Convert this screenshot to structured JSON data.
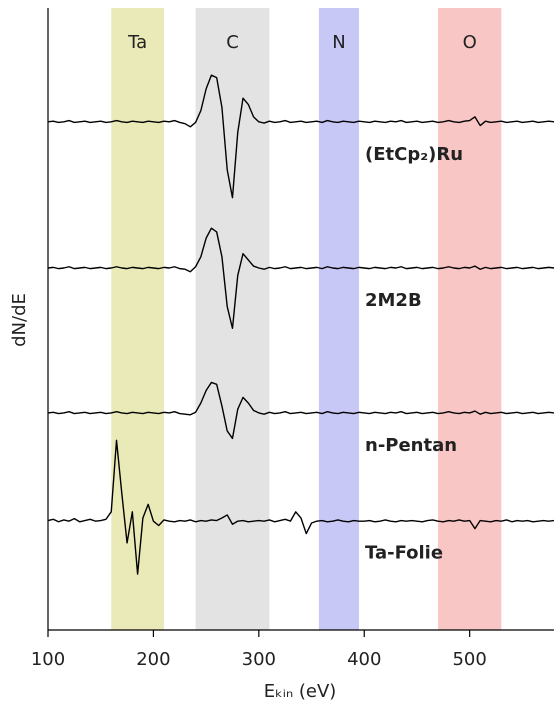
{
  "chart_data": {
    "type": "line",
    "xlabel": "Eₖᵢₙ (eV)",
    "ylabel": "dN/dE",
    "xlim": [
      100,
      580
    ],
    "xticks": [
      100,
      200,
      300,
      400,
      500
    ],
    "ylim": [
      0,
      100
    ],
    "regions": [
      {
        "label": "Ta",
        "range": [
          160,
          210
        ],
        "color": "#eaeab8"
      },
      {
        "label": "C",
        "range": [
          240,
          310
        ],
        "color": "#e3e3e3"
      },
      {
        "label": "N",
        "range": [
          357,
          395
        ],
        "color": "#c8c8f6"
      },
      {
        "label": "O",
        "range": [
          470,
          530
        ],
        "color": "#f9c6c6"
      }
    ],
    "x": [
      100,
      105,
      110,
      115,
      120,
      125,
      130,
      135,
      140,
      145,
      150,
      155,
      160,
      165,
      170,
      175,
      180,
      185,
      190,
      195,
      200,
      205,
      210,
      215,
      220,
      225,
      230,
      235,
      240,
      245,
      250,
      255,
      260,
      265,
      270,
      275,
      280,
      285,
      290,
      295,
      300,
      305,
      310,
      315,
      320,
      325,
      330,
      335,
      340,
      345,
      350,
      355,
      360,
      365,
      370,
      375,
      380,
      385,
      390,
      395,
      400,
      405,
      410,
      415,
      420,
      425,
      430,
      435,
      440,
      445,
      450,
      455,
      460,
      465,
      470,
      475,
      480,
      485,
      490,
      495,
      500,
      505,
      510,
      515,
      520,
      525,
      530,
      535,
      540,
      545,
      550,
      555,
      560,
      565,
      570,
      575,
      580
    ],
    "series": [
      {
        "name": "(EtCp₂)Ru",
        "color": "#000000",
        "values": [
          81.7,
          81.8,
          81.6,
          81.7,
          81.9,
          81.6,
          81.7,
          81.8,
          81.6,
          81.7,
          81.8,
          81.6,
          81.7,
          81.9,
          81.7,
          81.6,
          81.8,
          81.7,
          81.6,
          81.8,
          81.7,
          81.6,
          81.8,
          81.7,
          81.9,
          81.6,
          81.4,
          80.9,
          81.6,
          83.5,
          87,
          89.2,
          88.8,
          84,
          74,
          69.5,
          80,
          85.5,
          84.5,
          82.5,
          81.7,
          81.5,
          81.8,
          81.6,
          81.7,
          81.9,
          81.6,
          81.7,
          81.8,
          81.6,
          81.7,
          81.8,
          81.6,
          81.9,
          81.7,
          81.6,
          81.8,
          81.7,
          81.6,
          81.8,
          81.7,
          81.6,
          81.8,
          81.7,
          81.6,
          81.8,
          81.7,
          81.9,
          81.6,
          81.7,
          81.8,
          81.6,
          81.7,
          81.8,
          81.6,
          81.7,
          81.9,
          81.7,
          81.6,
          81.8,
          81.9,
          82.5,
          81.1,
          81.8,
          81.6,
          81.7,
          81.8,
          81.6,
          81.7,
          81.8,
          81.6,
          81.7,
          81.8,
          81.6,
          81.7,
          81.8,
          81.7
        ]
      },
      {
        "name": "2M2B",
        "color": "#000000",
        "values": [
          58.2,
          58.3,
          58.1,
          58.2,
          58.4,
          58.1,
          58.2,
          58.3,
          58.1,
          58.2,
          58.3,
          58.1,
          58.2,
          58.4,
          58.2,
          58.1,
          58.3,
          58.2,
          58.1,
          58.3,
          58.2,
          58.1,
          58.3,
          58.2,
          58.4,
          58.1,
          58.0,
          57.6,
          58.4,
          60,
          63,
          64.6,
          64,
          60,
          52,
          48.5,
          57,
          60.5,
          59.5,
          58.5,
          58.2,
          58.0,
          58.3,
          58.1,
          58.2,
          58.4,
          58.1,
          58.2,
          58.3,
          58.1,
          58.2,
          58.3,
          58.1,
          58.4,
          58.2,
          58.1,
          58.3,
          58.2,
          58.1,
          58.3,
          58.2,
          58.1,
          58.3,
          58.2,
          58.1,
          58.3,
          58.2,
          58.4,
          58.1,
          58.2,
          58.3,
          58.1,
          58.2,
          58.3,
          58.1,
          58.2,
          58.4,
          58.2,
          58.1,
          58.3,
          58.2,
          58.5,
          58.0,
          58.3,
          58.1,
          58.2,
          58.3,
          58.1,
          58.2,
          58.3,
          58.1,
          58.2,
          58.3,
          58.1,
          58.2,
          58.3,
          58.2
        ]
      },
      {
        "name": "n-Pentan",
        "color": "#000000",
        "values": [
          34.9,
          35.0,
          34.8,
          34.9,
          35.1,
          34.8,
          34.9,
          35.0,
          34.8,
          34.9,
          35.0,
          34.8,
          34.9,
          35.1,
          34.9,
          34.8,
          35.0,
          34.9,
          34.8,
          35.0,
          34.9,
          34.8,
          35.0,
          34.9,
          35.1,
          34.8,
          34.7,
          34.6,
          35,
          36.5,
          38.5,
          39.8,
          39.5,
          36,
          32,
          30.8,
          35.5,
          37.4,
          36.5,
          35.3,
          34.9,
          34.7,
          35.0,
          34.8,
          34.9,
          35.1,
          34.8,
          34.9,
          35.0,
          34.8,
          34.9,
          35.0,
          34.8,
          35.1,
          34.9,
          34.8,
          35.0,
          34.9,
          34.8,
          35.0,
          34.9,
          34.8,
          35.0,
          34.9,
          34.8,
          35.0,
          34.9,
          35.1,
          34.8,
          34.9,
          35.0,
          34.8,
          34.9,
          35.0,
          34.8,
          34.9,
          35.1,
          34.9,
          34.8,
          35.0,
          34.9,
          35.2,
          34.7,
          35.0,
          34.8,
          34.9,
          35.0,
          34.8,
          34.9,
          35.0,
          34.8,
          34.9,
          35.0,
          34.8,
          34.9,
          35.0,
          34.9
        ]
      },
      {
        "name": "Ta-Folie",
        "color": "#000000",
        "values": [
          17.6,
          17.8,
          17.4,
          17.7,
          17.5,
          17.9,
          17.4,
          17.6,
          17.8,
          17.5,
          17.6,
          17.8,
          19,
          30.5,
          22,
          14,
          19,
          9,
          18,
          20.2,
          17.5,
          16.8,
          17.7,
          17.5,
          17.4,
          17.6,
          17.5,
          17.7,
          17.4,
          17.6,
          17.5,
          17.7,
          17.6,
          18,
          18.5,
          17,
          17.5,
          17.6,
          17.4,
          17.5,
          17.6,
          17.5,
          17.7,
          17.4,
          17.6,
          17.8,
          17.5,
          19,
          18,
          15.5,
          17.2,
          17.5,
          17.6,
          17.4,
          17.5,
          17.7,
          17.5,
          17.4,
          17.6,
          17.5,
          17.5,
          17.6,
          17.4,
          17.5,
          17.7,
          17.5,
          17.4,
          17.6,
          17.5,
          17.6,
          17.5,
          17.4,
          17.6,
          17.7,
          17.5,
          17.4,
          17.6,
          17.5,
          17.7,
          17.5,
          17.6,
          16.3,
          17.6,
          17.5,
          17.4,
          17.6,
          17.5,
          17.7,
          17.4,
          17.6,
          17.5,
          17.6,
          17.4,
          17.5,
          17.6,
          17.5,
          17.6
        ]
      }
    ]
  }
}
